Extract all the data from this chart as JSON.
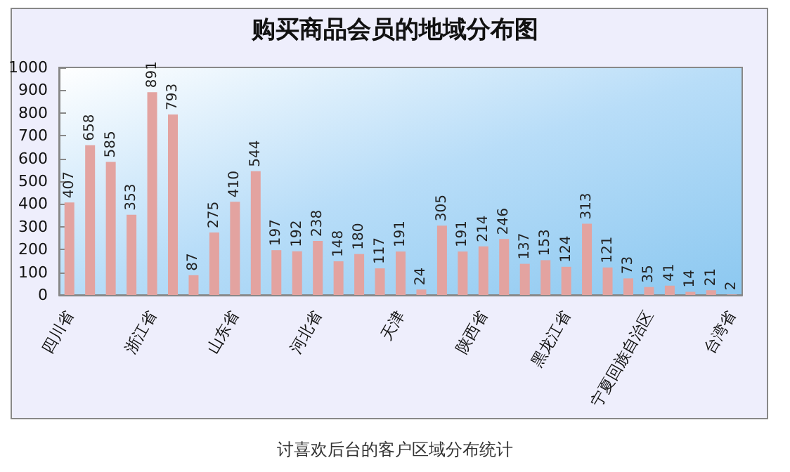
{
  "chart_data": {
    "type": "bar",
    "title": "购买商品会员的地域分布图",
    "categories": [
      "四川省",
      null,
      null,
      null,
      "浙江省",
      null,
      null,
      null,
      "山东省",
      null,
      null,
      null,
      "河北省",
      null,
      null,
      null,
      "天津",
      null,
      null,
      null,
      "陕西省",
      null,
      null,
      null,
      "黑龙江省",
      null,
      null,
      null,
      "宁夏回族自治区",
      null,
      null,
      null,
      "台湾省"
    ],
    "values": [
      407,
      658,
      585,
      353,
      891,
      793,
      87,
      275,
      410,
      544,
      197,
      192,
      238,
      148,
      180,
      117,
      191,
      24,
      305,
      191,
      214,
      246,
      137,
      153,
      124,
      313,
      121,
      73,
      35,
      41,
      14,
      21,
      2
    ],
    "color": "#e3a3a0",
    "ylim": [
      0,
      1000
    ],
    "yticks": [
      0,
      100,
      200,
      300,
      400,
      500,
      600,
      700,
      800,
      900,
      1000
    ],
    "grid": false,
    "data_labels": true,
    "annotations": [
      "讨喜欢后台的客户区域分布统计"
    ]
  }
}
